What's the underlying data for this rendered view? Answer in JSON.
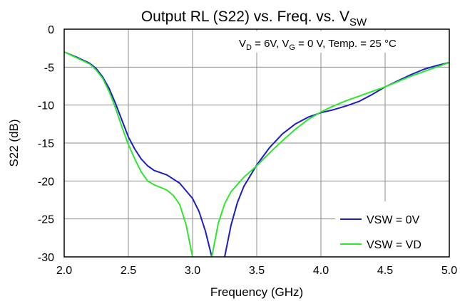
{
  "chart_data": {
    "type": "line",
    "title_main": "Output RL (S22) vs. Freq. vs. V",
    "title_sub": "SW",
    "xlabel": "Frequency (GHz)",
    "ylabel": "S22 (dB)",
    "xlim": [
      2.0,
      5.0
    ],
    "ylim": [
      -30,
      0
    ],
    "x_ticks": [
      "2.0",
      "2.5",
      "3.0",
      "3.5",
      "4.0",
      "4.5",
      "5.0"
    ],
    "y_ticks": [
      "0",
      "-5",
      "-10",
      "-15",
      "-20",
      "-25",
      "-30"
    ],
    "grid": true,
    "legend_position": "bottom-right",
    "annotation": {
      "v": "V",
      "d_sub": "D",
      "mid": " = 6V, V",
      "g_sub": "G",
      "tail": " = 0 V, Temp. = 25 °C"
    },
    "series": [
      {
        "name": "VSW = 0V",
        "color": "#1c1cc8",
        "points": [
          [
            2.0,
            -3.0
          ],
          [
            2.1,
            -3.7
          ],
          [
            2.2,
            -4.5
          ],
          [
            2.25,
            -5.2
          ],
          [
            2.3,
            -6.3
          ],
          [
            2.35,
            -7.8
          ],
          [
            2.4,
            -9.8
          ],
          [
            2.45,
            -12.0
          ],
          [
            2.5,
            -14.2
          ],
          [
            2.55,
            -15.8
          ],
          [
            2.6,
            -17.1
          ],
          [
            2.65,
            -18.0
          ],
          [
            2.7,
            -18.6
          ],
          [
            2.8,
            -19.2
          ],
          [
            2.9,
            -20.3
          ],
          [
            3.0,
            -22.3
          ],
          [
            3.05,
            -24.0
          ],
          [
            3.1,
            -26.6
          ],
          [
            3.15,
            -30.0
          ]
        ],
        "points_b": [
          [
            3.25,
            -30.0
          ],
          [
            3.3,
            -25.8
          ],
          [
            3.35,
            -22.8
          ],
          [
            3.4,
            -20.7
          ],
          [
            3.5,
            -17.9
          ],
          [
            3.6,
            -15.6
          ],
          [
            3.7,
            -13.8
          ],
          [
            3.8,
            -12.5
          ],
          [
            3.9,
            -11.6
          ],
          [
            4.0,
            -11.0
          ],
          [
            4.1,
            -10.6
          ],
          [
            4.2,
            -10.1
          ],
          [
            4.3,
            -9.5
          ],
          [
            4.4,
            -8.6
          ],
          [
            4.5,
            -7.6
          ],
          [
            4.6,
            -6.8
          ],
          [
            4.7,
            -6.0
          ],
          [
            4.8,
            -5.3
          ],
          [
            4.9,
            -4.8
          ],
          [
            5.0,
            -4.4
          ]
        ]
      },
      {
        "name": "VSW = VD",
        "color": "#2ee82e",
        "points": [
          [
            2.0,
            -3.0
          ],
          [
            2.1,
            -3.8
          ],
          [
            2.2,
            -4.6
          ],
          [
            2.25,
            -5.4
          ],
          [
            2.3,
            -6.5
          ],
          [
            2.35,
            -8.2
          ],
          [
            2.4,
            -10.4
          ],
          [
            2.45,
            -12.9
          ],
          [
            2.5,
            -15.2
          ],
          [
            2.55,
            -17.1
          ],
          [
            2.6,
            -18.8
          ],
          [
            2.65,
            -20.0
          ],
          [
            2.7,
            -20.5
          ],
          [
            2.8,
            -21.2
          ],
          [
            2.85,
            -21.9
          ],
          [
            2.9,
            -23.1
          ],
          [
            2.95,
            -25.8
          ],
          [
            3.0,
            -30.0
          ]
        ],
        "points_b": [
          [
            3.15,
            -30.0
          ],
          [
            3.2,
            -25.6
          ],
          [
            3.25,
            -23.0
          ],
          [
            3.3,
            -21.4
          ],
          [
            3.4,
            -19.5
          ],
          [
            3.5,
            -18.0
          ],
          [
            3.6,
            -16.3
          ],
          [
            3.7,
            -14.7
          ],
          [
            3.8,
            -13.2
          ],
          [
            3.9,
            -11.9
          ],
          [
            4.0,
            -10.9
          ],
          [
            4.1,
            -10.1
          ],
          [
            4.2,
            -9.4
          ],
          [
            4.3,
            -8.8
          ],
          [
            4.4,
            -8.2
          ],
          [
            4.5,
            -7.6
          ],
          [
            4.6,
            -6.9
          ],
          [
            4.7,
            -6.2
          ],
          [
            4.8,
            -5.6
          ],
          [
            4.9,
            -5.0
          ],
          [
            5.0,
            -4.4
          ]
        ]
      }
    ]
  }
}
